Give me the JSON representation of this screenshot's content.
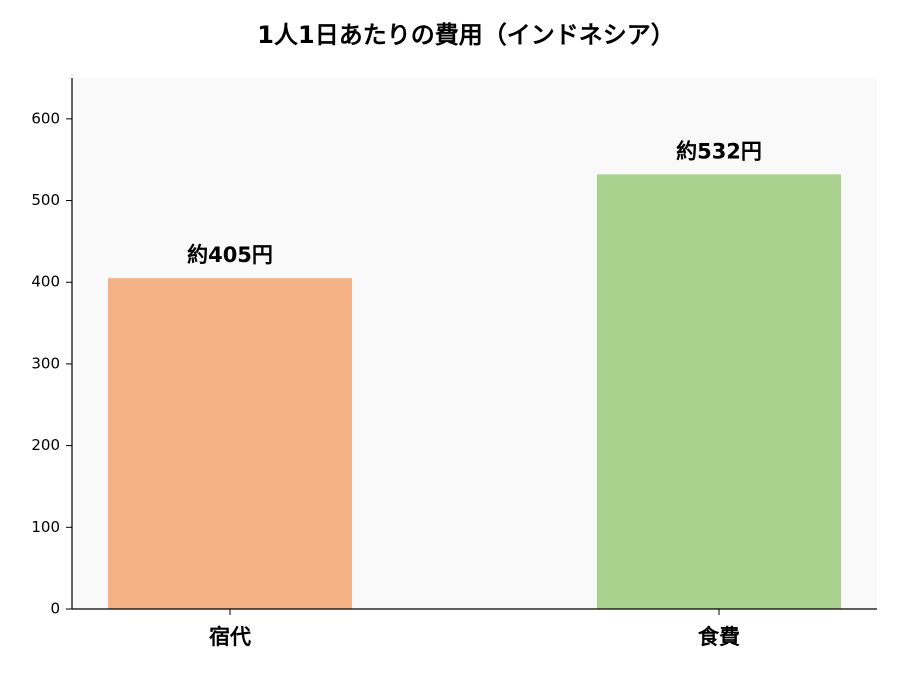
{
  "chart_data": {
    "type": "bar",
    "title": "1人1日あたりの費用（インドネシア）",
    "categories": [
      "宿代",
      "食費"
    ],
    "values": [
      405,
      532
    ],
    "value_labels": [
      "約405円",
      "約532円"
    ],
    "colors": [
      "#f4b183",
      "#a9d18e"
    ],
    "ylim": [
      0,
      650
    ],
    "yticks": [
      0,
      100,
      200,
      300,
      400,
      500,
      600
    ],
    "grid": false
  }
}
